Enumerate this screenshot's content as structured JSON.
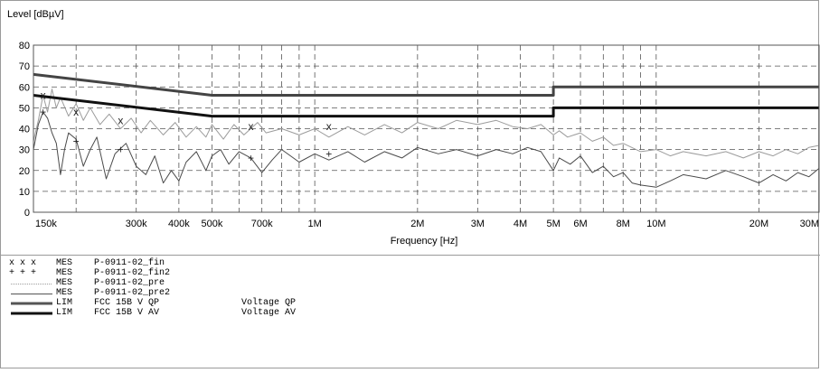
{
  "chart_data": {
    "type": "line",
    "ylabel": "Level [dBµV]",
    "xlabel": "Frequency [Hz]",
    "x_scale": "log",
    "xlim": [
      150000,
      30000000
    ],
    "ylim": [
      0,
      80
    ],
    "grid": true,
    "y_ticks": [
      0,
      10,
      20,
      30,
      40,
      50,
      60,
      70,
      80
    ],
    "x_ticks": [
      {
        "value": 150000,
        "label": "150k"
      },
      {
        "value": 300000,
        "label": "300k"
      },
      {
        "value": 400000,
        "label": "400k"
      },
      {
        "value": 500000,
        "label": "500k"
      },
      {
        "value": 700000,
        "label": "700k"
      },
      {
        "value": 1000000,
        "label": "1M"
      },
      {
        "value": 2000000,
        "label": "2M"
      },
      {
        "value": 3000000,
        "label": "3M"
      },
      {
        "value": 4000000,
        "label": "4M"
      },
      {
        "value": 5000000,
        "label": "5M"
      },
      {
        "value": 6000000,
        "label": "6M"
      },
      {
        "value": 8000000,
        "label": "8M"
      },
      {
        "value": 10000000,
        "label": "10M"
      },
      {
        "value": 20000000,
        "label": "20M"
      },
      {
        "value": 30000000,
        "label": "30M"
      }
    ],
    "x_grid_extra": [
      200000,
      600000,
      800000,
      900000,
      7000000,
      9000000
    ],
    "series": [
      {
        "name": "P-0911-02_pre",
        "color": "#9c9c9c",
        "points": [
          [
            150000,
            34
          ],
          [
            155000,
            44
          ],
          [
            160000,
            56
          ],
          [
            165000,
            48
          ],
          [
            170000,
            59
          ],
          [
            175000,
            50
          ],
          [
            180000,
            55
          ],
          [
            190000,
            46
          ],
          [
            200000,
            52
          ],
          [
            210000,
            44
          ],
          [
            220000,
            50
          ],
          [
            235000,
            42
          ],
          [
            250000,
            47
          ],
          [
            270000,
            40
          ],
          [
            290000,
            45
          ],
          [
            310000,
            38
          ],
          [
            330000,
            44
          ],
          [
            360000,
            37
          ],
          [
            390000,
            43
          ],
          [
            420000,
            36
          ],
          [
            450000,
            41
          ],
          [
            480000,
            36
          ],
          [
            500000,
            42
          ],
          [
            540000,
            35
          ],
          [
            580000,
            42
          ],
          [
            620000,
            37
          ],
          [
            680000,
            43
          ],
          [
            720000,
            38
          ],
          [
            800000,
            40
          ],
          [
            900000,
            37
          ],
          [
            1000000,
            40
          ],
          [
            1100000,
            36
          ],
          [
            1250000,
            41
          ],
          [
            1400000,
            37
          ],
          [
            1600000,
            42
          ],
          [
            1800000,
            38
          ],
          [
            2000000,
            43
          ],
          [
            2300000,
            40
          ],
          [
            2600000,
            44
          ],
          [
            3000000,
            42
          ],
          [
            3400000,
            44
          ],
          [
            3800000,
            41
          ],
          [
            4200000,
            40
          ],
          [
            4600000,
            42
          ],
          [
            5000000,
            37
          ],
          [
            5200000,
            39
          ],
          [
            5500000,
            36
          ],
          [
            6000000,
            38
          ],
          [
            6500000,
            34
          ],
          [
            7000000,
            36
          ],
          [
            7500000,
            32
          ],
          [
            8000000,
            33
          ],
          [
            9000000,
            29
          ],
          [
            10000000,
            30
          ],
          [
            11000000,
            27
          ],
          [
            12000000,
            29
          ],
          [
            14000000,
            27
          ],
          [
            16000000,
            29
          ],
          [
            18000000,
            26
          ],
          [
            20000000,
            29
          ],
          [
            22000000,
            27
          ],
          [
            24000000,
            30
          ],
          [
            26000000,
            28
          ],
          [
            28000000,
            31
          ],
          [
            30000000,
            32
          ]
        ]
      },
      {
        "name": "P-0911-02_pre2",
        "color": "#4a4a4a",
        "points": [
          [
            150000,
            30
          ],
          [
            155000,
            42
          ],
          [
            160000,
            48
          ],
          [
            165000,
            45
          ],
          [
            170000,
            38
          ],
          [
            175000,
            33
          ],
          [
            180000,
            18
          ],
          [
            185000,
            30
          ],
          [
            190000,
            38
          ],
          [
            200000,
            35
          ],
          [
            210000,
            22
          ],
          [
            220000,
            30
          ],
          [
            230000,
            36
          ],
          [
            245000,
            16
          ],
          [
            260000,
            28
          ],
          [
            280000,
            33
          ],
          [
            300000,
            22
          ],
          [
            320000,
            18
          ],
          [
            340000,
            27
          ],
          [
            360000,
            14
          ],
          [
            380000,
            20
          ],
          [
            400000,
            15
          ],
          [
            420000,
            24
          ],
          [
            450000,
            29
          ],
          [
            480000,
            20
          ],
          [
            500000,
            27
          ],
          [
            530000,
            30
          ],
          [
            560000,
            23
          ],
          [
            600000,
            29
          ],
          [
            650000,
            26
          ],
          [
            700000,
            19
          ],
          [
            750000,
            25
          ],
          [
            800000,
            30
          ],
          [
            900000,
            24
          ],
          [
            1000000,
            28
          ],
          [
            1100000,
            25
          ],
          [
            1250000,
            29
          ],
          [
            1400000,
            24
          ],
          [
            1600000,
            29
          ],
          [
            1800000,
            26
          ],
          [
            2000000,
            31
          ],
          [
            2300000,
            28
          ],
          [
            2600000,
            30
          ],
          [
            3000000,
            27
          ],
          [
            3400000,
            30
          ],
          [
            3800000,
            28
          ],
          [
            4200000,
            31
          ],
          [
            4600000,
            29
          ],
          [
            5000000,
            20
          ],
          [
            5200000,
            26
          ],
          [
            5600000,
            23
          ],
          [
            6000000,
            27
          ],
          [
            6500000,
            19
          ],
          [
            7000000,
            22
          ],
          [
            7500000,
            17
          ],
          [
            8000000,
            19
          ],
          [
            8500000,
            14
          ],
          [
            9000000,
            13
          ],
          [
            10000000,
            12
          ],
          [
            11000000,
            15
          ],
          [
            12000000,
            18
          ],
          [
            14000000,
            16
          ],
          [
            16000000,
            20
          ],
          [
            18000000,
            17
          ],
          [
            20000000,
            14
          ],
          [
            22000000,
            18
          ],
          [
            24000000,
            15
          ],
          [
            26000000,
            19
          ],
          [
            28000000,
            17
          ],
          [
            30000000,
            21
          ]
        ]
      },
      {
        "name": "FCC 15B V QP",
        "color": "#444444",
        "width": 3,
        "points": [
          [
            150000,
            66
          ],
          [
            500000,
            56
          ],
          [
            5000000,
            56
          ],
          [
            5000000,
            60
          ],
          [
            30000000,
            60
          ]
        ]
      },
      {
        "name": "FCC 15B V AV",
        "color": "#111111",
        "width": 3,
        "points": [
          [
            150000,
            56
          ],
          [
            500000,
            46
          ],
          [
            5000000,
            46
          ],
          [
            5000000,
            50
          ],
          [
            30000000,
            50
          ]
        ]
      }
    ],
    "markers": [
      {
        "series": "P-0911-02_fin",
        "symbol": "x",
        "points": [
          [
            160000,
            56
          ],
          [
            200000,
            48
          ],
          [
            270000,
            44
          ],
          [
            650000,
            41
          ],
          [
            1100000,
            41
          ]
        ]
      },
      {
        "series": "P-0911-02_fin2",
        "symbol": "+",
        "points": [
          [
            160000,
            48
          ],
          [
            200000,
            34
          ],
          [
            270000,
            30
          ],
          [
            650000,
            26
          ],
          [
            1100000,
            28
          ]
        ]
      }
    ]
  },
  "legend": [
    {
      "symbol": "x x x",
      "type": "MES",
      "name": "P-0911-02_fin",
      "desc": ""
    },
    {
      "symbol": "+ + +",
      "type": "MES",
      "name": "P-0911-02_fin2",
      "desc": ""
    },
    {
      "symbol": "",
      "type": "MES",
      "name": "P-0911-02_pre",
      "desc": ""
    },
    {
      "symbol": "",
      "type": "MES",
      "name": "P-0911-02_pre2",
      "desc": ""
    },
    {
      "symbol": "",
      "type": "LIM",
      "name": "FCC 15B V QP",
      "desc": "Voltage QP"
    },
    {
      "symbol": "",
      "type": "LIM",
      "name": "FCC 15B V AV",
      "desc": "Voltage AV"
    }
  ]
}
